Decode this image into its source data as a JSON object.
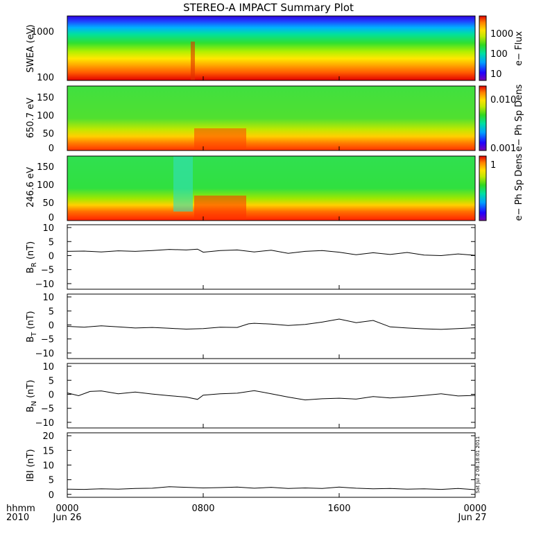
{
  "title": "STEREO-A IMPACT Summary Plot",
  "colors": {
    "background": "#ffffff",
    "axis": "#000000",
    "line": "#000000",
    "colormap": [
      "#7a00b0",
      "#2000ff",
      "#00a0ff",
      "#00e0a0",
      "#30d820",
      "#c0e800",
      "#ffe000",
      "#ff8000",
      "#e00000"
    ]
  },
  "footer": {
    "label1": "hhmm",
    "label2": "2010",
    "date_left": "Jun 26",
    "date_right": "Jun 27",
    "timestamp": "Sat Jul  2 08:18:01 2011"
  },
  "chart_data": [
    {
      "type": "heatmap",
      "ylabel": "SWEA (eV)",
      "ytick_labels": [
        "100",
        "1000"
      ],
      "ylim": [
        90,
        2000
      ],
      "yscale": "log",
      "colorbar_label": "e− Flux",
      "colorbar_ticks": [
        "10",
        "100",
        "1000"
      ],
      "color_scale": "log",
      "description_bands_yellow_green_from_log": [
        2.4,
        3.0
      ]
    },
    {
      "type": "heatmap",
      "ylabel": "650.7 eV",
      "ytick_labels": [
        "0",
        "50",
        "100",
        "150"
      ],
      "ylim": [
        0,
        180
      ],
      "colorbar_label": "e− Ph Sp Dens",
      "colorbar_ticks": [
        "0.001",
        "0.010"
      ],
      "color_scale": "log"
    },
    {
      "type": "heatmap",
      "ylabel": "246.6 eV",
      "ytick_labels": [
        "0",
        "50",
        "100",
        "150"
      ],
      "ylim": [
        0,
        180
      ],
      "colorbar_label": "e− Ph Sp Dens",
      "colorbar_ticks": [
        "1"
      ],
      "color_scale": "log"
    },
    {
      "type": "line",
      "ylabel_main": "B",
      "ylabel_sub": "R",
      "ylabel_unit": "(nT)",
      "ytick_labels": [
        "−10",
        "−5",
        "0",
        "5",
        "10"
      ],
      "ylim": [
        -12,
        11
      ],
      "x": [
        0,
        60,
        120,
        180,
        240,
        300,
        360,
        420,
        460,
        480,
        540,
        600,
        660,
        720,
        780,
        840,
        900,
        960,
        1020,
        1080,
        1140,
        1200,
        1260,
        1320,
        1380,
        1440
      ],
      "values": [
        1.5,
        1.6,
        1.3,
        1.7,
        1.5,
        1.8,
        2.2,
        2.0,
        2.3,
        1.2,
        1.8,
        2.0,
        1.3,
        1.9,
        0.8,
        1.5,
        1.8,
        1.2,
        0.3,
        1.0,
        0.4,
        1.1,
        0.2,
        0.0,
        0.6,
        0.1
      ]
    },
    {
      "type": "line",
      "ylabel_main": "B",
      "ylabel_sub": "T",
      "ylabel_unit": "(nT)",
      "ytick_labels": [
        "−10",
        "−5",
        "0",
        "5",
        "10"
      ],
      "ylim": [
        -12,
        11
      ],
      "x": [
        0,
        60,
        120,
        180,
        240,
        300,
        360,
        420,
        480,
        540,
        600,
        640,
        660,
        720,
        780,
        840,
        900,
        960,
        1020,
        1080,
        1140,
        1200,
        1260,
        1320,
        1380,
        1440
      ],
      "values": [
        -0.5,
        -0.8,
        -0.3,
        -0.7,
        -1.1,
        -0.9,
        -1.2,
        -1.5,
        -1.3,
        -0.8,
        -0.9,
        0.4,
        0.6,
        0.3,
        -0.2,
        0.2,
        1.0,
        2.1,
        0.8,
        1.6,
        -0.7,
        -1.1,
        -1.4,
        -1.6,
        -1.3,
        -1.0
      ]
    },
    {
      "type": "line",
      "ylabel_main": "B",
      "ylabel_sub": "N",
      "ylabel_unit": "(nT)",
      "ytick_labels": [
        "−10",
        "−5",
        "0",
        "5",
        "10"
      ],
      "ylim": [
        -12,
        11
      ],
      "x": [
        0,
        40,
        80,
        120,
        180,
        240,
        300,
        360,
        420,
        460,
        480,
        540,
        600,
        660,
        720,
        780,
        840,
        900,
        960,
        1020,
        1080,
        1140,
        1200,
        1260,
        1320,
        1380,
        1440
      ],
      "values": [
        0.5,
        -0.5,
        1.0,
        1.2,
        0.2,
        0.8,
        0.1,
        -0.5,
        -1.0,
        -1.8,
        -0.3,
        0.2,
        0.4,
        1.3,
        0.2,
        -1.0,
        -2.0,
        -1.6,
        -1.4,
        -1.7,
        -0.8,
        -1.3,
        -0.9,
        -0.4,
        0.2,
        -0.6,
        -0.4
      ]
    },
    {
      "type": "line",
      "ylabel_main": "IBI",
      "ylabel_unit": "(nT)",
      "ytick_labels": [
        "0",
        "5",
        "10",
        "15",
        "20"
      ],
      "ylim": [
        -1,
        21
      ],
      "x": [
        0,
        60,
        120,
        180,
        240,
        300,
        360,
        420,
        480,
        540,
        600,
        660,
        720,
        780,
        840,
        900,
        960,
        1020,
        1080,
        1140,
        1200,
        1260,
        1320,
        1380,
        1440
      ],
      "values": [
        1.8,
        1.7,
        1.9,
        1.8,
        2.0,
        2.1,
        2.6,
        2.4,
        2.2,
        2.3,
        2.5,
        2.1,
        2.4,
        2.0,
        2.2,
        2.0,
        2.5,
        2.1,
        1.9,
        2.0,
        1.8,
        1.9,
        1.7,
        2.0,
        1.6
      ]
    }
  ],
  "x_axis": {
    "xlim": [
      0,
      1440
    ],
    "tick_labels": [
      "0000",
      "0800",
      "1600",
      "0000"
    ],
    "tick_values": [
      0,
      480,
      960,
      1440
    ]
  }
}
